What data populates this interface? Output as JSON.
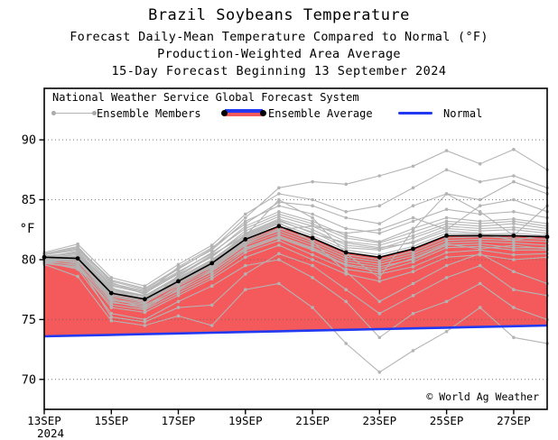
{
  "titles": {
    "line1": "Brazil Soybeans Temperature",
    "line2": "Forecast Daily-Mean Temperature Compared to Normal (°F)",
    "line3": "Production-Weighted Area Average",
    "line4": "15-Day Forecast Beginning 13 September 2024"
  },
  "legend": {
    "header": "National Weather Service Global Forecast System",
    "items": [
      {
        "label": "Ensemble Members"
      },
      {
        "label": "Ensemble Average"
      },
      {
        "label": "Normal"
      }
    ]
  },
  "copyright": "© World Ag Weather",
  "colors": {
    "ensemble_member": "#b4b4b4",
    "ensemble_average": "#000000",
    "normal": "#2139f0",
    "above_normal_fill": "#f4595b",
    "grid": "#666666",
    "border": "#000000"
  },
  "chart_data": {
    "type": "line",
    "title": "Brazil Soybeans Temperature",
    "subtitle": "Forecast Daily-Mean Temperature Compared to Normal (°F), Production-Weighted Area Average, 15-Day Forecast Beginning 13 September 2024",
    "ylabel": "°F",
    "ylim": [
      67.5,
      94.3
    ],
    "yticks": [
      70,
      75,
      80,
      85,
      90
    ],
    "grid": "dotted horizontal gridlines at yticks",
    "legend_position": "top inside frame",
    "x_categories": [
      "13SEP",
      "14SEP",
      "15SEP",
      "16SEP",
      "17SEP",
      "18SEP",
      "19SEP",
      "20SEP",
      "21SEP",
      "22SEP",
      "23SEP",
      "24SEP",
      "25SEP",
      "26SEP",
      "27SEP",
      "28SEP"
    ],
    "x_tick_labels": [
      "13SEP",
      "15SEP",
      "17SEP",
      "19SEP",
      "21SEP",
      "23SEP",
      "25SEP",
      "27SEP"
    ],
    "x_tick_positions": [
      0,
      2,
      4,
      6,
      8,
      10,
      12,
      14
    ],
    "x_year_label": "2024",
    "fill_between": "red area between Normal line and Ensemble Average line (above normal)",
    "ensemble_average": [
      80.2,
      80.1,
      77.2,
      76.7,
      78.2,
      79.7,
      81.7,
      82.8,
      81.8,
      80.6,
      80.2,
      80.9,
      82.0,
      82.0,
      82.0,
      81.9
    ],
    "normal": [
      73.6,
      73.66,
      73.72,
      73.78,
      73.84,
      73.9,
      73.96,
      74.02,
      74.08,
      74.14,
      74.2,
      74.26,
      74.32,
      74.38,
      74.44,
      74.5
    ],
    "ensemble_members": [
      [
        80.0,
        80.3,
        77.5,
        76.9,
        78.5,
        80.0,
        82.0,
        83.2,
        82.3,
        81.0,
        80.8,
        81.5,
        82.6,
        82.4,
        82.5,
        82.2
      ],
      [
        80.4,
        80.8,
        78.0,
        77.4,
        79.0,
        80.5,
        82.8,
        84.0,
        83.2,
        82.0,
        81.5,
        82.6,
        83.5,
        83.2,
        83.4,
        83.0
      ],
      [
        79.8,
        79.6,
        76.6,
        76.2,
        77.6,
        79.0,
        81.0,
        82.0,
        81.0,
        79.8,
        79.4,
        80.0,
        81.2,
        81.3,
        81.0,
        81.0
      ],
      [
        80.1,
        80.0,
        77.0,
        76.5,
        78.0,
        79.5,
        81.5,
        82.6,
        81.6,
        80.4,
        80.0,
        80.7,
        81.8,
        81.9,
        81.8,
        81.7
      ],
      [
        80.3,
        80.5,
        77.8,
        77.2,
        78.8,
        80.2,
        82.4,
        83.6,
        82.8,
        81.5,
        81.2,
        82.0,
        83.0,
        82.8,
        83.0,
        82.6
      ],
      [
        79.9,
        79.8,
        76.8,
        76.0,
        77.8,
        79.2,
        81.2,
        82.2,
        81.2,
        80.0,
        79.6,
        80.3,
        81.4,
        81.5,
        81.4,
        81.2
      ],
      [
        80.5,
        81.0,
        78.3,
        77.6,
        79.3,
        80.8,
        83.2,
        84.5,
        83.8,
        82.6,
        82.2,
        83.2,
        84.2,
        83.8,
        84.0,
        83.5
      ],
      [
        79.7,
        79.3,
        76.2,
        75.8,
        77.2,
        78.6,
        80.6,
        81.6,
        80.4,
        79.2,
        78.8,
        79.4,
        80.6,
        80.8,
        80.4,
        80.5
      ],
      [
        80.2,
        80.2,
        77.3,
        76.8,
        78.3,
        79.8,
        81.8,
        83.0,
        82.0,
        80.8,
        80.4,
        81.1,
        82.2,
        82.1,
        82.2,
        82.0
      ],
      [
        80.0,
        79.9,
        76.9,
        76.4,
        77.9,
        79.4,
        81.4,
        82.4,
        81.4,
        80.2,
        79.8,
        80.5,
        81.6,
        81.7,
        81.6,
        81.5
      ],
      [
        80.6,
        81.3,
        78.5,
        77.8,
        79.6,
        81.2,
        83.8,
        85.5,
        85.0,
        84.0,
        84.5,
        86.0,
        87.5,
        86.5,
        87.0,
        86.0
      ],
      [
        80.4,
        80.9,
        78.2,
        77.5,
        79.2,
        80.9,
        83.5,
        86.0,
        86.5,
        86.3,
        87.0,
        87.8,
        89.1,
        88.0,
        89.2,
        87.5
      ],
      [
        79.6,
        78.6,
        74.9,
        74.5,
        75.3,
        74.5,
        77.5,
        78.0,
        76.0,
        73.0,
        70.6,
        72.4,
        74.0,
        76.0,
        73.5,
        73.0
      ],
      [
        79.8,
        79.2,
        75.5,
        75.0,
        76.5,
        77.8,
        79.5,
        80.0,
        78.5,
        76.5,
        73.5,
        75.5,
        76.5,
        78.0,
        76.0,
        75.0
      ],
      [
        80.1,
        80.4,
        77.6,
        77.0,
        78.6,
        80.3,
        82.2,
        83.4,
        82.5,
        81.2,
        80.9,
        81.8,
        82.8,
        82.6,
        82.7,
        82.4
      ],
      [
        79.9,
        79.5,
        76.4,
        76.1,
        77.4,
        78.8,
        80.8,
        81.8,
        80.8,
        79.5,
        79.0,
        79.8,
        81.0,
        81.1,
        80.8,
        80.8
      ],
      [
        80.3,
        80.6,
        77.9,
        77.3,
        78.9,
        80.6,
        82.6,
        83.8,
        83.0,
        81.8,
        81.4,
        82.3,
        83.2,
        83.0,
        83.2,
        82.8
      ],
      [
        80.0,
        80.1,
        77.1,
        76.6,
        78.1,
        79.6,
        81.6,
        82.8,
        81.8,
        80.6,
        80.2,
        80.9,
        82.0,
        82.0,
        82.0,
        81.9
      ],
      [
        79.7,
        79.4,
        76.0,
        75.6,
        77.0,
        78.4,
        80.2,
        81.2,
        80.0,
        78.8,
        78.2,
        79.0,
        80.2,
        80.4,
        80.0,
        80.2
      ],
      [
        80.2,
        80.7,
        77.7,
        76.3,
        78.7,
        80.4,
        82.0,
        85.0,
        83.5,
        80.5,
        78.5,
        82.5,
        85.5,
        84.0,
        82.0,
        84.5
      ],
      [
        80.5,
        81.1,
        78.1,
        77.1,
        79.4,
        81.0,
        83.0,
        84.8,
        84.5,
        83.5,
        83.0,
        84.5,
        85.5,
        85.0,
        86.5,
        85.5
      ],
      [
        80.1,
        80.0,
        76.7,
        76.3,
        78.4,
        79.9,
        81.9,
        83.1,
        81.5,
        79.0,
        76.5,
        78.0,
        79.5,
        80.5,
        79.0,
        78.0
      ],
      [
        79.8,
        80.2,
        77.4,
        76.9,
        78.2,
        79.3,
        81.3,
        82.5,
        82.8,
        82.2,
        82.5,
        83.5,
        82.5,
        84.5,
        85.0,
        84.0
      ],
      [
        80.0,
        79.7,
        75.2,
        74.8,
        76.0,
        76.2,
        78.8,
        80.5,
        79.5,
        77.5,
        75.5,
        77.0,
        78.5,
        79.5,
        77.5,
        77.0
      ],
      [
        80.2,
        80.4,
        77.5,
        77.0,
        78.4,
        79.9,
        82.1,
        83.3,
        82.2,
        81.4,
        81.0,
        81.4,
        82.4,
        82.2,
        81.6,
        82.1
      ],
      [
        79.9,
        80.0,
        76.5,
        75.9,
        77.5,
        79.1,
        80.9,
        81.9,
        80.9,
        79.6,
        79.2,
        80.1,
        81.3,
        80.9,
        81.2,
        80.9
      ]
    ]
  }
}
